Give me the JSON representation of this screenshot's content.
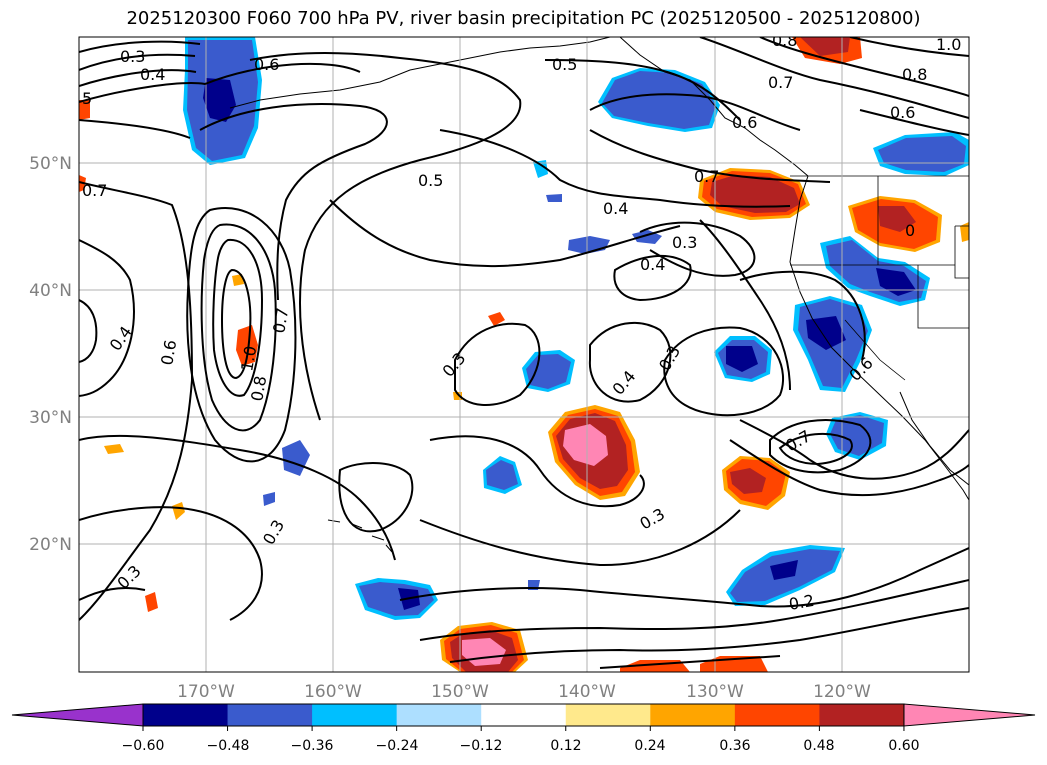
{
  "title": "2025120300 F060 700 hPa PV, river basin precipitation PC (2025120500 - 2025120800)",
  "map": {
    "lon_labels": [
      "170°W",
      "160°W",
      "150°W",
      "140°W",
      "130°W",
      "120°W"
    ],
    "lat_labels": [
      "50°N",
      "40°N",
      "30°N",
      "20°N"
    ]
  },
  "contours": {
    "label_values": [
      "0.3",
      "0.4",
      "0.5",
      "0.6",
      "0.7",
      "0.8",
      "1.0",
      "0.2"
    ]
  },
  "colorbar": {
    "labels": [
      "−0.60",
      "−0.48",
      "−0.36",
      "−0.24",
      "−0.12",
      "0.12",
      "0.24",
      "0.36",
      "0.48",
      "0.60"
    ],
    "colors": [
      "#9932CC",
      "#00008B",
      "#3A5BCD",
      "#00BFFF",
      "#ADDFFF",
      "#FFFFFF",
      "#FFE98C",
      "#FFA500",
      "#FF4500",
      "#B22222",
      "#FF86B4"
    ]
  }
}
